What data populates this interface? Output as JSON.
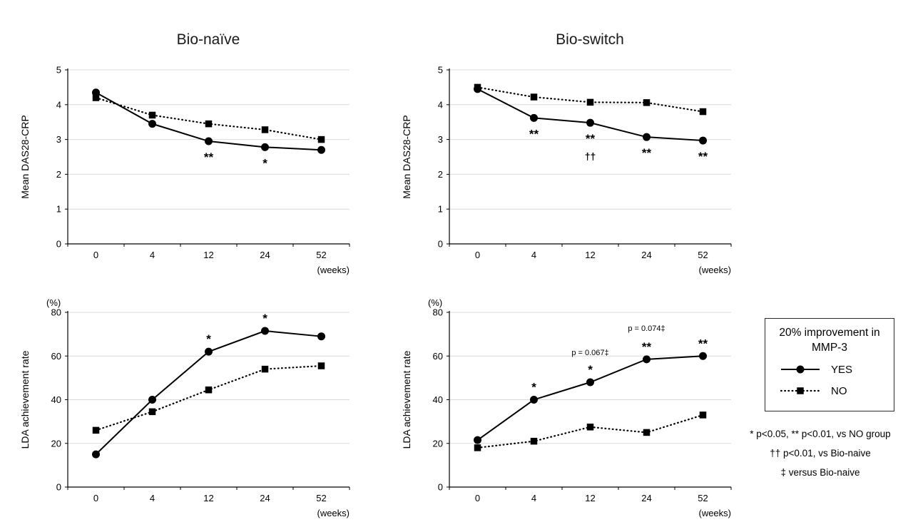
{
  "figure": {
    "columns": [
      {
        "title": "Bio-naïve"
      },
      {
        "title": "Bio-switch"
      }
    ]
  },
  "legend": {
    "title_line1": "20% improvement in",
    "title_line2": "MMP-3",
    "items": [
      {
        "label": "YES",
        "marker": "circle",
        "line": "solid"
      },
      {
        "label": "NO",
        "marker": "square",
        "line": "dotted"
      }
    ]
  },
  "footnotes": [
    "* p<0.05, ** p<0.01, vs NO group",
    "†† p<0.01, vs Bio-naive",
    "‡ versus Bio-naive"
  ],
  "colors": {
    "series": "#000000",
    "gridline": "#d9d9d9",
    "axis": "#000000"
  },
  "chart_data": [
    {
      "id": "das28-bio-naive",
      "type": "line",
      "group": "Bio-naïve",
      "ylabel": "Mean DAS28-CRP",
      "xlabel": "(weeks)",
      "categories": [
        "0",
        "4",
        "12",
        "24",
        "52"
      ],
      "ylim": [
        0,
        5
      ],
      "yticks": [
        0,
        1,
        2,
        3,
        4,
        5
      ],
      "grid": true,
      "series": [
        {
          "name": "YES",
          "marker": "circle",
          "line": "solid",
          "values": [
            4.35,
            3.45,
            2.95,
            2.78,
            2.7
          ]
        },
        {
          "name": "NO",
          "marker": "square",
          "line": "dotted",
          "values": [
            4.2,
            3.7,
            3.45,
            3.28,
            3.0
          ]
        }
      ],
      "annotations": [
        {
          "xi": 2,
          "text": "**",
          "dy": 28
        },
        {
          "xi": 3,
          "text": "*",
          "dy": 28
        }
      ]
    },
    {
      "id": "das28-bio-switch",
      "type": "line",
      "group": "Bio-switch",
      "ylabel": "Mean DAS28-CRP",
      "xlabel": "(weeks)",
      "categories": [
        "0",
        "4",
        "12",
        "24",
        "52"
      ],
      "ylim": [
        0,
        5
      ],
      "yticks": [
        0,
        1,
        2,
        3,
        4,
        5
      ],
      "grid": true,
      "series": [
        {
          "name": "YES",
          "marker": "circle",
          "line": "solid",
          "values": [
            4.45,
            3.62,
            3.48,
            3.07,
            2.97
          ]
        },
        {
          "name": "NO",
          "marker": "square",
          "line": "dotted",
          "values": [
            4.5,
            4.22,
            4.07,
            4.06,
            3.8
          ]
        }
      ],
      "annotations": [
        {
          "xi": 1,
          "text": "**",
          "dy": 28
        },
        {
          "xi": 2,
          "text": "**",
          "dy": 28
        },
        {
          "xi": 2,
          "text": "††",
          "dy": 52,
          "size": 14,
          "weight": 600
        },
        {
          "xi": 3,
          "text": "**",
          "dy": 28
        },
        {
          "xi": 4,
          "text": "**",
          "dy": 28
        }
      ]
    },
    {
      "id": "lda-bio-naive",
      "type": "line",
      "group": "Bio-naïve",
      "ylabel": "LDA achievement rate",
      "unit_label": "(%)",
      "xlabel": "(weeks)",
      "categories": [
        "0",
        "4",
        "12",
        "24",
        "52"
      ],
      "ylim": [
        0,
        80
      ],
      "yticks": [
        0,
        20,
        40,
        60,
        80
      ],
      "grid": true,
      "series": [
        {
          "name": "YES",
          "marker": "circle",
          "line": "solid",
          "values": [
            15,
            40,
            62,
            71.5,
            69
          ]
        },
        {
          "name": "NO",
          "marker": "square",
          "line": "dotted",
          "values": [
            26,
            34.5,
            44.5,
            54,
            55.5
          ]
        }
      ],
      "annotations": [
        {
          "xi": 2,
          "text": "*",
          "dy": -12
        },
        {
          "xi": 3,
          "text": "*",
          "dy": -12
        }
      ]
    },
    {
      "id": "lda-bio-switch",
      "type": "line",
      "group": "Bio-switch",
      "ylabel": "LDA achievement rate",
      "unit_label": "(%)",
      "xlabel": "(weeks)",
      "categories": [
        "0",
        "4",
        "12",
        "24",
        "52"
      ],
      "ylim": [
        0,
        80
      ],
      "yticks": [
        0,
        20,
        40,
        60,
        80
      ],
      "grid": true,
      "series": [
        {
          "name": "YES",
          "marker": "circle",
          "line": "solid",
          "values": [
            21.5,
            40,
            48,
            58.5,
            60
          ]
        },
        {
          "name": "NO",
          "marker": "square",
          "line": "dotted",
          "values": [
            18,
            21,
            27.5,
            25,
            33
          ]
        }
      ],
      "annotations": [
        {
          "xi": 1,
          "text": "*",
          "dy": -12
        },
        {
          "xi": 2,
          "text": "*",
          "dy": -12
        },
        {
          "xi": 2,
          "text": "p = 0.067‡",
          "dy": -38,
          "size": 11,
          "weight": 400
        },
        {
          "xi": 3,
          "text": "**",
          "dy": -12
        },
        {
          "xi": 3,
          "text": "p = 0.074‡",
          "dy": -40,
          "size": 11,
          "weight": 400
        },
        {
          "xi": 4,
          "text": "**",
          "dy": -12
        }
      ]
    }
  ]
}
